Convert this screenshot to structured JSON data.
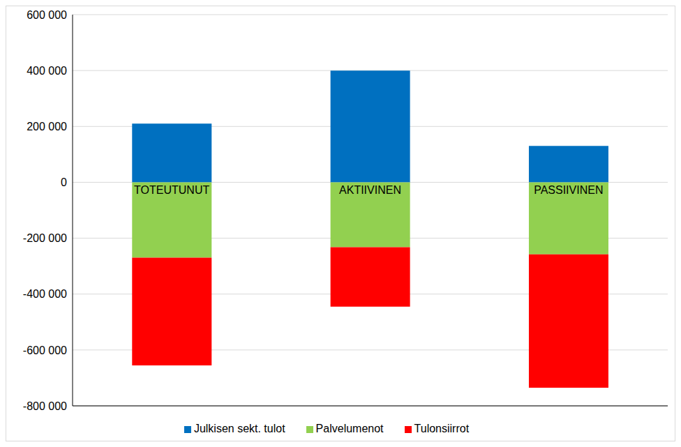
{
  "chart_data": {
    "type": "bar",
    "stacked": true,
    "grid": true,
    "legend": "bottom",
    "categories": [
      "TOTEUTUNUT",
      "AKTIIVINEN",
      "PASSIIVINEN"
    ],
    "series": [
      {
        "name": "Julkisen sekt. tulot",
        "color": "#0070C0",
        "values": [
          210000,
          400000,
          130000
        ]
      },
      {
        "name": "Palvelumenot",
        "color": "#92D050",
        "values": [
          -270000,
          -232000,
          -258000
        ]
      },
      {
        "name": "Tulonsiirrot",
        "color": "#FF0000",
        "values": [
          -385000,
          -213000,
          -477000
        ]
      }
    ],
    "ylim": [
      -800000,
      600000
    ],
    "yticks": [
      {
        "value": -800000,
        "label": "-800 000"
      },
      {
        "value": -600000,
        "label": "-600 000"
      },
      {
        "value": -400000,
        "label": "-400 000"
      },
      {
        "value": -200000,
        "label": "-200 000"
      },
      {
        "value": 0,
        "label": "0"
      },
      {
        "value": 200000,
        "label": "200 000"
      },
      {
        "value": 400000,
        "label": "400 000"
      },
      {
        "value": 600000,
        "label": "600 000"
      }
    ]
  }
}
